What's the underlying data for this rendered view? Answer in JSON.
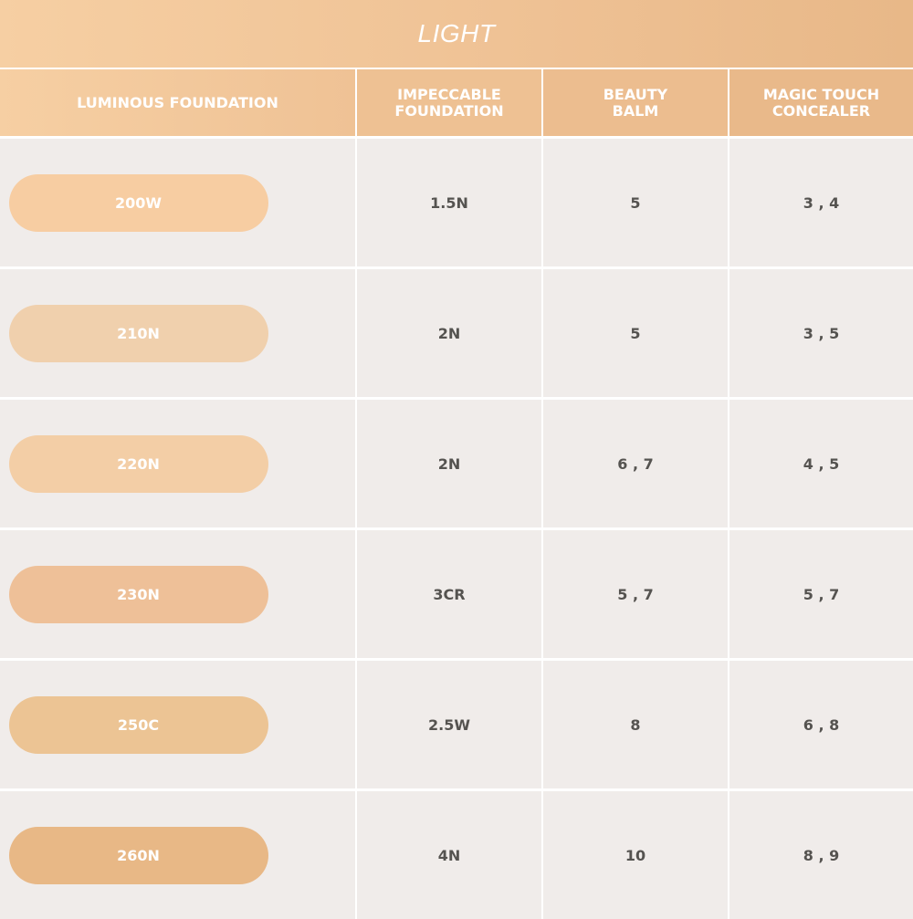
{
  "title": "LIGHT",
  "headers": [
    "LUMINOUS FOUNDATION",
    "IMPECCABLE\nFOUNDATION",
    "BEAUTY\nBALM",
    "MAGIC TOUCH\nCONCEALER"
  ],
  "rows": [
    {
      "shade": "200W",
      "color": "#f7cda2",
      "impeccable": "1.5N",
      "beauty_balm": "5",
      "concealer": "3 , 4"
    },
    {
      "shade": "210N",
      "color": "#f0d0ad",
      "impeccable": "2N",
      "beauty_balm": "5",
      "concealer": "3 , 5"
    },
    {
      "shade": "220N",
      "color": "#f3cea6",
      "impeccable": "2N",
      "beauty_balm": "6 , 7",
      "concealer": "4 , 5"
    },
    {
      "shade": "230N",
      "color": "#eec098",
      "impeccable": "3CR",
      "beauty_balm": "5 , 7",
      "concealer": "5 , 7"
    },
    {
      "shade": "250C",
      "color": "#ecc494",
      "impeccable": "2.5W",
      "beauty_balm": "8",
      "concealer": "6 , 8"
    },
    {
      "shade": "260N",
      "color": "#e8b886",
      "impeccable": "4N",
      "beauty_balm": "10",
      "concealer": "8 , 9"
    }
  ]
}
